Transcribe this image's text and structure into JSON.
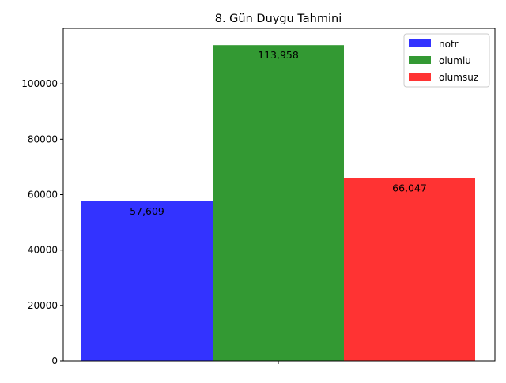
{
  "chart_data": {
    "type": "bar",
    "title": "8. Gün Duygu Tahmini",
    "xlabel": "",
    "ylabel": "",
    "ylim": [
      0,
      120000
    ],
    "yticks": [
      0,
      20000,
      40000,
      60000,
      80000,
      100000
    ],
    "yticks_text": [
      "0",
      "20000",
      "40000",
      "60000",
      "80000",
      "100000"
    ],
    "grid": false,
    "legend_position": "top-right",
    "series": [
      {
        "name": "notr",
        "value": 57609,
        "label": "57,609",
        "color": "#3333ff"
      },
      {
        "name": "olumlu",
        "value": 113958,
        "label": "113,958",
        "color": "#339933"
      },
      {
        "name": "olumsuz",
        "value": 66047,
        "label": "66,047",
        "color": "#ff3333"
      }
    ]
  }
}
